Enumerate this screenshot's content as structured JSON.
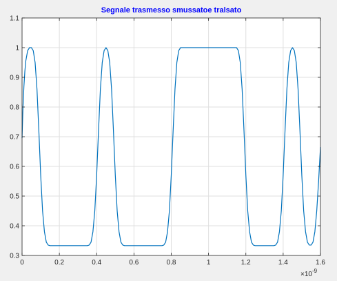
{
  "chart_data": {
    "type": "line",
    "title": "Segnale trasmesso smussatoe tralsato",
    "xlabel": "",
    "ylabel": "",
    "x_exponent_label": "×10",
    "x_exponent_power": "-9",
    "xlim": [
      0,
      1.6
    ],
    "ylim": [
      0.3,
      1.1
    ],
    "xticks": [
      0,
      0.2,
      0.4,
      0.6,
      0.8,
      1,
      1.2,
      1.4,
      1.6
    ],
    "xtick_labels": [
      "0",
      "0.2",
      "0.4",
      "0.6",
      "0.8",
      "1",
      "1.2",
      "1.4",
      "1.6"
    ],
    "yticks": [
      0.3,
      0.4,
      0.5,
      0.6,
      0.7,
      0.8,
      0.9,
      1,
      1.1
    ],
    "ytick_labels": [
      "0.3",
      "0.4",
      "0.5",
      "0.6",
      "0.7",
      "0.8",
      "0.9",
      "1",
      "1.1"
    ],
    "grid": true,
    "series": [
      {
        "x": [
          0,
          0.005,
          0.01,
          0.015,
          0.02,
          0.03,
          0.04,
          0.05,
          0.06,
          0.07,
          0.08,
          0.09,
          0.1,
          0.11,
          0.12,
          0.13,
          0.14,
          0.15,
          0.17,
          0.25,
          0.35,
          0.36,
          0.37,
          0.38,
          0.39,
          0.4,
          0.41,
          0.42,
          0.43,
          0.44,
          0.45,
          0.46,
          0.47,
          0.48,
          0.49,
          0.5,
          0.51,
          0.52,
          0.53,
          0.54,
          0.55,
          0.57,
          0.65,
          0.75,
          0.76,
          0.77,
          0.78,
          0.79,
          0.8,
          0.81,
          0.82,
          0.83,
          0.84,
          0.85,
          1.0,
          1.15,
          1.16,
          1.17,
          1.18,
          1.19,
          1.2,
          1.21,
          1.22,
          1.23,
          1.24,
          1.25,
          1.27,
          1.35,
          1.36,
          1.37,
          1.38,
          1.39,
          1.4,
          1.41,
          1.42,
          1.43,
          1.44,
          1.45,
          1.46,
          1.47,
          1.48,
          1.49,
          1.5,
          1.51,
          1.52,
          1.53,
          1.54,
          1.55,
          1.56,
          1.57,
          1.58,
          1.59,
          1.6
        ],
        "values": [
          0.695,
          0.8,
          0.87,
          0.92,
          0.955,
          0.99,
          1.0,
          1.0,
          0.99,
          0.95,
          0.86,
          0.72,
          0.57,
          0.45,
          0.38,
          0.345,
          0.335,
          0.333,
          0.333,
          0.333,
          0.333,
          0.335,
          0.345,
          0.38,
          0.45,
          0.57,
          0.72,
          0.86,
          0.95,
          0.99,
          1.0,
          0.99,
          0.95,
          0.86,
          0.72,
          0.57,
          0.45,
          0.38,
          0.345,
          0.335,
          0.333,
          0.333,
          0.333,
          0.333,
          0.335,
          0.345,
          0.38,
          0.45,
          0.57,
          0.72,
          0.86,
          0.95,
          0.99,
          1.0,
          1.0,
          1.0,
          0.99,
          0.95,
          0.86,
          0.72,
          0.57,
          0.45,
          0.38,
          0.345,
          0.335,
          0.333,
          0.333,
          0.333,
          0.335,
          0.345,
          0.38,
          0.45,
          0.57,
          0.72,
          0.86,
          0.95,
          0.99,
          1.0,
          0.99,
          0.95,
          0.86,
          0.72,
          0.57,
          0.45,
          0.38,
          0.345,
          0.335,
          0.335,
          0.345,
          0.38,
          0.45,
          0.55,
          0.665
        ],
        "color": "#0072bd"
      }
    ],
    "title_color": "#0000ff",
    "axes_background": "#ffffff",
    "figure_background": "#f0f0f0",
    "grid_color": "#dfdfdf",
    "axis_color": "#262626"
  }
}
